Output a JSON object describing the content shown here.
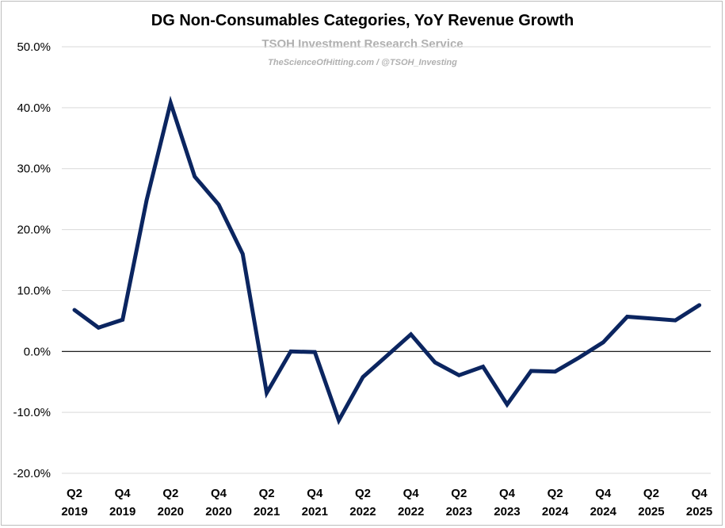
{
  "chart_data": {
    "type": "line",
    "title": "DG Non-Consumables Categories, YoY Revenue Growth",
    "subtitle": "TSOH Investment Research Service",
    "annotation": "TheScienceOfHitting.com / @TSOH_Investing",
    "xlabel": "",
    "ylabel": "",
    "ylim": [
      -20,
      50
    ],
    "yticks": [
      -20,
      -10,
      0,
      10,
      20,
      30,
      40,
      50
    ],
    "ytick_labels": [
      "-20.0%",
      "-10.0%",
      "0.0%",
      "10.0%",
      "20.0%",
      "30.0%",
      "40.0%",
      "50.0%"
    ],
    "grid": true,
    "x": [
      "Q2 2019",
      "Q3 2019",
      "Q4 2019",
      "Q1 2020",
      "Q2 2020",
      "Q3 2020",
      "Q4 2020",
      "Q1 2021",
      "Q2 2021",
      "Q3 2021",
      "Q4 2021",
      "Q1 2022",
      "Q2 2022",
      "Q3 2022",
      "Q4 2022",
      "Q1 2023",
      "Q2 2023",
      "Q3 2023",
      "Q4 2023",
      "Q1 2024",
      "Q2 2024",
      "Q3 2024",
      "Q4 2024",
      "Q1 2025",
      "Q2 2025",
      "Q3 2025",
      "Q4 2025"
    ],
    "xtick_labels": [
      {
        "q": "Q2",
        "y": "2019",
        "index": 0
      },
      {
        "q": "Q4",
        "y": "2019",
        "index": 2
      },
      {
        "q": "Q2",
        "y": "2020",
        "index": 4
      },
      {
        "q": "Q4",
        "y": "2020",
        "index": 6
      },
      {
        "q": "Q2",
        "y": "2021",
        "index": 8
      },
      {
        "q": "Q4",
        "y": "2021",
        "index": 10
      },
      {
        "q": "Q2",
        "y": "2022",
        "index": 12
      },
      {
        "q": "Q4",
        "y": "2022",
        "index": 14
      },
      {
        "q": "Q2",
        "y": "2023",
        "index": 16
      },
      {
        "q": "Q4",
        "y": "2023",
        "index": 18
      },
      {
        "q": "Q2",
        "y": "2024",
        "index": 20
      },
      {
        "q": "Q4",
        "y": "2024",
        "index": 22
      },
      {
        "q": "Q2",
        "y": "2025",
        "index": 24
      },
      {
        "q": "Q4",
        "y": "2025",
        "index": 26
      }
    ],
    "series": [
      {
        "name": "Non-Consumables YoY Revenue Growth (%)",
        "color": "#0b2560",
        "values": [
          6.8,
          3.9,
          5.2,
          24.8,
          40.8,
          28.7,
          24.1,
          16.0,
          -6.8,
          0.0,
          -0.1,
          -11.3,
          -4.2,
          -0.7,
          2.8,
          -1.8,
          -3.9,
          -2.5,
          -8.7,
          -3.2,
          -3.3,
          -1.0,
          1.5,
          5.7,
          5.4,
          5.1,
          7.6
        ]
      }
    ]
  }
}
